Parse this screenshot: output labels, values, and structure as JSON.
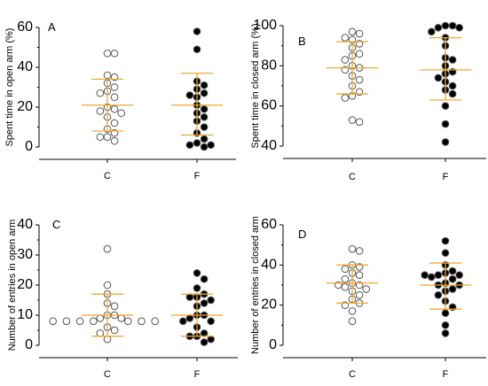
{
  "colors": {
    "errorbar": "#f0a830",
    "open": "#ffffff",
    "filled": "#000000",
    "stroke": "#555555"
  },
  "chart_data": [
    {
      "type": "scatter",
      "panel": "A",
      "ylabel": "Spent time in open arm (%)",
      "ylim": [
        0,
        60
      ],
      "yticks": [
        "0",
        "20",
        "40",
        "60"
      ],
      "categories": [
        "C",
        "F"
      ],
      "series": [
        {
          "category": "C",
          "style": "open",
          "mean": 21,
          "upper": 34,
          "lower": 8,
          "values": [
            47,
            47,
            36,
            35,
            32,
            30,
            28,
            27,
            25,
            20,
            19,
            18,
            17,
            15,
            12,
            9,
            7,
            5,
            5,
            3
          ]
        },
        {
          "category": "F",
          "style": "filled",
          "mean": 21,
          "upper": 37,
          "lower": 6,
          "values": [
            58,
            49,
            33,
            31,
            29,
            27,
            26,
            25,
            21,
            19,
            17,
            15,
            13,
            10,
            7,
            4,
            2,
            1,
            1,
            0
          ]
        }
      ]
    },
    {
      "type": "scatter",
      "panel": "B",
      "ylabel": "Spent time in closed arm (%)",
      "ylim": [
        40,
        100
      ],
      "yticks": [
        "40",
        "60",
        "80",
        "100"
      ],
      "categories": [
        "C",
        "F"
      ],
      "series": [
        {
          "category": "C",
          "style": "open",
          "mean": 79,
          "upper": 92,
          "lower": 66,
          "values": [
            97,
            96,
            94,
            93,
            91,
            89,
            86,
            85,
            83,
            80,
            79,
            78,
            75,
            73,
            70,
            67,
            65,
            64,
            53,
            52
          ]
        },
        {
          "category": "F",
          "style": "filled",
          "mean": 78,
          "upper": 94,
          "lower": 63,
          "values": [
            100,
            100,
            99,
            99,
            97,
            94,
            90,
            84,
            83,
            80,
            77,
            76,
            74,
            72,
            70,
            68,
            66,
            60,
            51,
            42
          ]
        }
      ]
    },
    {
      "type": "scatter",
      "panel": "C",
      "ylabel": "Number of entries in open arm",
      "ylim": [
        0,
        40
      ],
      "yticks": [
        "0",
        "10",
        "20",
        "30",
        "40"
      ],
      "categories": [
        "C",
        "F"
      ],
      "series": [
        {
          "category": "C",
          "style": "open",
          "mean": 10,
          "upper": 17,
          "lower": 3,
          "values": [
            32,
            20,
            17,
            14,
            13,
            10,
            10,
            9,
            9,
            8,
            8,
            8,
            8,
            8,
            8,
            8,
            6,
            5,
            4,
            2
          ]
        },
        {
          "category": "F",
          "style": "filled",
          "mean": 10,
          "upper": 17,
          "lower": 3,
          "values": [
            24,
            22,
            19,
            17,
            16,
            16,
            15,
            14,
            13,
            10,
            10,
            9,
            8,
            8,
            6,
            4,
            3,
            3,
            2,
            1
          ]
        }
      ]
    },
    {
      "type": "scatter",
      "panel": "D",
      "ylabel": "Number of entries in closed arm",
      "ylim": [
        0,
        60
      ],
      "yticks": [
        "0",
        "20",
        "40",
        "60"
      ],
      "categories": [
        "C",
        "F"
      ],
      "series": [
        {
          "category": "C",
          "style": "open",
          "mean": 31,
          "upper": 40,
          "lower": 21,
          "values": [
            48,
            47,
            40,
            39,
            38,
            36,
            35,
            33,
            31,
            30,
            30,
            29,
            28,
            27,
            25,
            23,
            21,
            20,
            17,
            12
          ]
        },
        {
          "category": "F",
          "style": "filled",
          "mean": 30,
          "upper": 41,
          "lower": 18,
          "values": [
            52,
            46,
            40,
            37,
            36,
            35,
            35,
            35,
            34,
            33,
            31,
            30,
            30,
            28,
            27,
            25,
            22,
            19,
            16,
            10,
            6
          ]
        }
      ]
    }
  ]
}
